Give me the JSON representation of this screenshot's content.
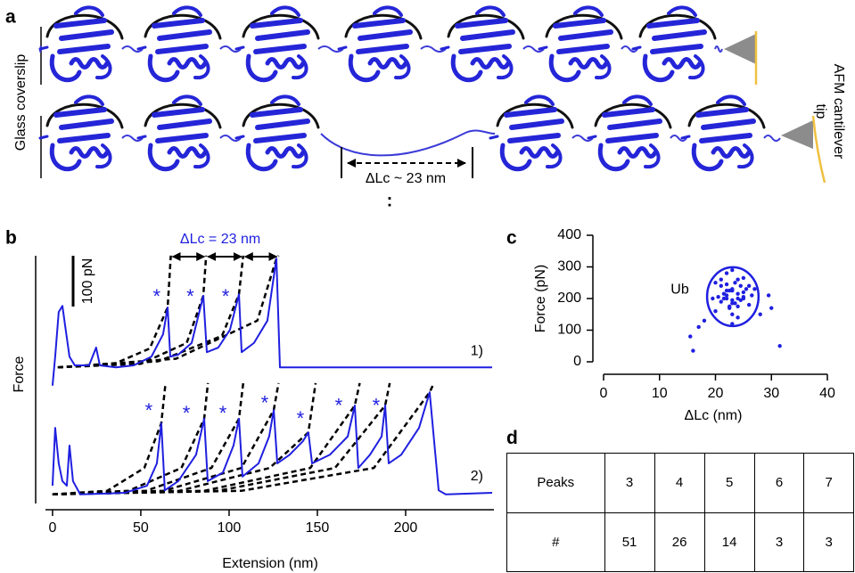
{
  "diagram": {
    "label": "a",
    "left_label": "Glass coverslip",
    "right_label_lines": [
      "AFM cantilever",
      "tip"
    ],
    "delta_label": "ΔLc ~ 23 nm",
    "ellipsis": ":"
  },
  "chart_data": [
    {
      "type": "line",
      "panel_label": "b",
      "xlabel": "Extension (nm)",
      "ylabel": "Force",
      "xlim": [
        -4,
        250
      ],
      "xticks": [
        0,
        50,
        100,
        150,
        200
      ],
      "ylim": [
        0,
        500
      ],
      "scale_bar": {
        "value": 100,
        "label": "100 pN"
      },
      "series": [
        {
          "name": "1)",
          "color": "#1f1fe0",
          "x": [
            0,
            1.5,
            3.5,
            5.6,
            7.1,
            9.6,
            12.6,
            20.7,
            24.7,
            26.8,
            35.9,
            46,
            56,
            62.6,
            65.2,
            66.7,
            71.2,
            78.8,
            85.4,
            87.4,
            93.9,
            100.5,
            105.6,
            107.1,
            114.1,
            121.7,
            126.8,
            128.8,
            249
          ],
          "values": [
            232,
            289,
            377,
            389,
            351,
            289,
            272,
            272,
            307,
            272,
            268,
            272,
            289,
            333,
            386,
            289,
            293,
            316,
            409,
            298,
            307,
            342,
            412,
            298,
            316,
            360,
            482,
            268,
            268
          ]
        },
        {
          "name": "2)",
          "color": "#1f1fe0",
          "x": [
            0,
            1.5,
            3.5,
            5.6,
            8.1,
            9.6,
            11.6,
            15.7,
            40.9,
            53.5,
            59.1,
            61.6,
            63.6,
            71.2,
            81.3,
            85.9,
            87.9,
            96.5,
            102.5,
            105.6,
            107.6,
            116.7,
            122.7,
            125.3,
            127.3,
            134.3,
            141.9,
            144.9,
            147,
            157.1,
            167.2,
            171.2,
            173.2,
            179.8,
            186.4,
            188.4,
            190.4,
            197.5,
            207.6,
            213.6,
            218.7,
            222.7,
            249
          ],
          "values": [
            35,
            149,
            79,
            44,
            35,
            114,
            44,
            18,
            21,
            35,
            79,
            158,
            26,
            44,
            96,
            167,
            44,
            61,
            114,
            167,
            53,
            79,
            132,
            184,
            79,
            96,
            123,
            140,
            79,
            96,
            132,
            193,
            70,
            96,
            132,
            193,
            79,
            96,
            149,
            219,
            26,
            18,
            21
          ]
        },
        {
          "color": "#000000",
          "dashed": true,
          "x": [
            3,
            35,
            55,
            65.2,
            67
          ],
          "values": [
            268,
            275,
            305,
            386,
            488
          ]
        },
        {
          "color": "#000000",
          "dashed": true,
          "x": [
            3,
            50,
            76,
            85.4,
            87
          ],
          "values": [
            268,
            275,
            316,
            409,
            488
          ]
        },
        {
          "color": "#000000",
          "dashed": true,
          "x": [
            3,
            60,
            96,
            105.6,
            108
          ],
          "values": [
            268,
            280,
            330,
            412,
            488
          ]
        },
        {
          "color": "#000000",
          "dashed": true,
          "x": [
            3,
            70,
            116,
            126.8,
            128
          ],
          "values": [
            268,
            285,
            360,
            482,
            488
          ]
        },
        {
          "color": "#000000",
          "dashed": true,
          "x": [
            0,
            31,
            52,
            61.6,
            64
          ],
          "values": [
            18,
            25,
            70,
            158,
            237
          ]
        },
        {
          "color": "#000000",
          "dashed": true,
          "x": [
            0,
            43,
            73,
            85.9,
            88
          ],
          "values": [
            18,
            25,
            70,
            167,
            237
          ]
        },
        {
          "color": "#000000",
          "dashed": true,
          "x": [
            0,
            53,
            90,
            105.6,
            108
          ],
          "values": [
            18,
            25,
            70,
            167,
            237
          ]
        },
        {
          "color": "#000000",
          "dashed": true,
          "x": [
            0,
            63,
            107,
            125.3,
            128
          ],
          "values": [
            18,
            25,
            70,
            184,
            237
          ]
        },
        {
          "color": "#000000",
          "dashed": true,
          "x": [
            0,
            72,
            123,
            144.9,
            149
          ],
          "values": [
            18,
            25,
            70,
            140,
            237
          ]
        },
        {
          "color": "#000000",
          "dashed": true,
          "x": [
            0,
            86,
            146,
            171.2,
            174
          ],
          "values": [
            18,
            25,
            70,
            193,
            237
          ]
        },
        {
          "color": "#000000",
          "dashed": true,
          "x": [
            0,
            94,
            160,
            188.4,
            191
          ],
          "values": [
            18,
            25,
            70,
            193,
            237
          ]
        },
        {
          "color": "#000000",
          "dashed": true,
          "x": [
            0,
            107,
            182,
            213.6,
            216
          ],
          "values": [
            18,
            25,
            70,
            219,
            237
          ]
        }
      ],
      "annotations": [
        {
          "text": "*",
          "x": 59,
          "y": 405
        },
        {
          "text": "*",
          "x": 78,
          "y": 405
        },
        {
          "text": "*",
          "x": 98,
          "y": 405
        },
        {
          "text": "*",
          "x": 54.5,
          "y": 180
        },
        {
          "text": "*",
          "x": 75.8,
          "y": 175
        },
        {
          "text": "*",
          "x": 96.5,
          "y": 175
        },
        {
          "text": "*",
          "x": 120.2,
          "y": 195
        },
        {
          "text": "*",
          "x": 140.4,
          "y": 165
        },
        {
          "text": "*",
          "x": 162.1,
          "y": 190
        },
        {
          "text": "*",
          "x": 183.3,
          "y": 190
        },
        {
          "text": "ΔLc = 23 nm",
          "x": 95,
          "y": 520
        }
      ],
      "dimension_arrows": [
        {
          "x1": 67,
          "x2": 87,
          "y": 486
        },
        {
          "x1": 87,
          "x2": 108,
          "y": 486
        },
        {
          "x1": 108,
          "x2": 128,
          "y": 486
        }
      ]
    },
    {
      "type": "scatter",
      "panel_label": "c",
      "xlabel": "ΔLc (nm)",
      "ylabel": "Force (pN)",
      "color": "#1f1fe0",
      "xlim": [
        0,
        40
      ],
      "xticks": [
        0,
        10,
        20,
        30,
        40
      ],
      "ylim": [
        0,
        400
      ],
      "yticks": [
        0,
        100,
        200,
        300,
        400
      ],
      "x": [
        22,
        23,
        24,
        21,
        25,
        23.5,
        22.5,
        24.5,
        21.5,
        26,
        20.5,
        23,
        24,
        22,
        25.5,
        23,
        21,
        24,
        22.5,
        25,
        20,
        26.5,
        23.5,
        22,
        24,
        23,
        21.5,
        25,
        22,
        24.5,
        23,
        22.5,
        27,
        19.5,
        28,
        29.5,
        30,
        31.5,
        15.5,
        16,
        17,
        18,
        22,
        24,
        23,
        25,
        21,
        26,
        20,
        23
      ],
      "values": [
        210,
        230,
        200,
        190,
        220,
        250,
        170,
        240,
        215,
        180,
        205,
        150,
        260,
        280,
        230,
        195,
        240,
        175,
        225,
        205,
        160,
        210,
        185,
        245,
        140,
        290,
        200,
        265,
        225,
        195,
        120,
        175,
        230,
        200,
        150,
        210,
        170,
        50,
        80,
        35,
        110,
        130,
        200,
        215,
        185,
        200,
        260,
        240,
        250,
        225
      ],
      "ellipse": {
        "cx": 23.1,
        "cy": 206,
        "rx": 4.6,
        "ry": 93
      },
      "annotations": [
        {
          "text": "Ub",
          "x": 12,
          "y": 228
        }
      ]
    }
  ],
  "table": {
    "label": "d",
    "rows": [
      [
        "Peaks",
        3,
        4,
        5,
        6,
        7
      ],
      [
        "#",
        51,
        26,
        14,
        3,
        3
      ]
    ]
  }
}
